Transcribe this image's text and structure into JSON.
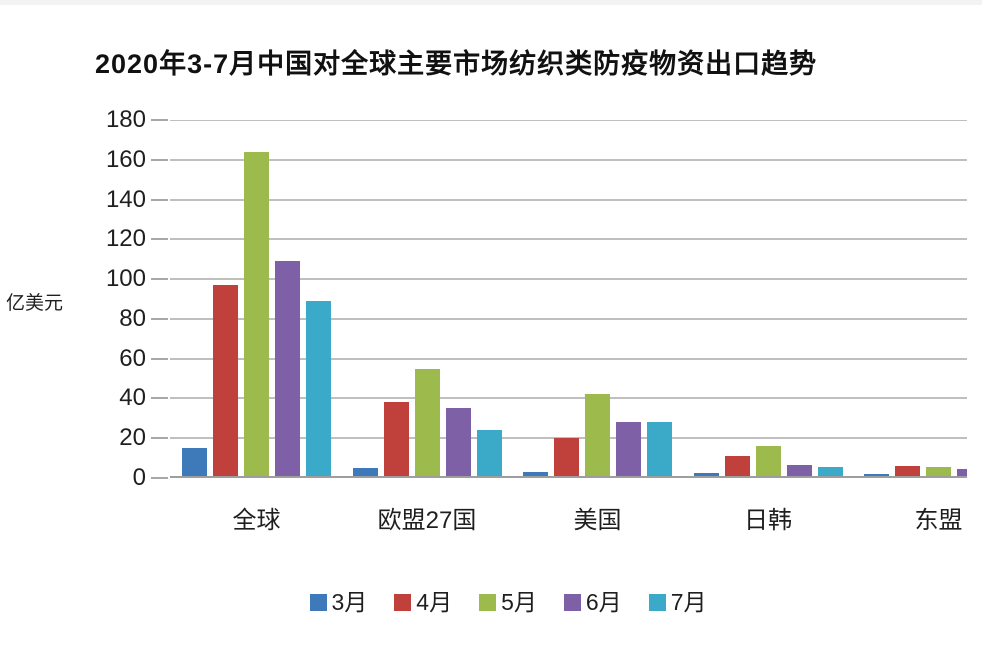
{
  "chart_data": {
    "type": "bar",
    "title": "2020年3-7月中国对全球主要市场纺织类防疫物资出口趋势",
    "ylabel": "亿美元",
    "categories": [
      "全球",
      "欧盟27国",
      "美国",
      "日韩",
      "东盟"
    ],
    "series": [
      {
        "name": "3月",
        "color": "#3E7AB9",
        "values": [
          14,
          4,
          2,
          1.5,
          1
        ]
      },
      {
        "name": "4月",
        "color": "#C0403C",
        "values": [
          96,
          37,
          19,
          10,
          5
        ]
      },
      {
        "name": "5月",
        "color": "#9CBB4C",
        "values": [
          163,
          54,
          41,
          15,
          4.5
        ]
      },
      {
        "name": "6月",
        "color": "#7D60A6",
        "values": [
          108,
          34,
          27,
          5.5,
          3.5
        ]
      },
      {
        "name": "7月",
        "color": "#3BAAC8",
        "values": [
          88,
          23,
          27,
          4.5,
          null
        ]
      }
    ],
    "ylim": [
      0,
      180
    ],
    "yticks": [
      0,
      20,
      40,
      60,
      80,
      100,
      120,
      140,
      160,
      180
    ],
    "grid": true,
    "legend_position": "bottom",
    "gridline_color": "#bfbfbf",
    "baseline_color": "#9e9e9e",
    "note_right_edge_clipped": true
  }
}
